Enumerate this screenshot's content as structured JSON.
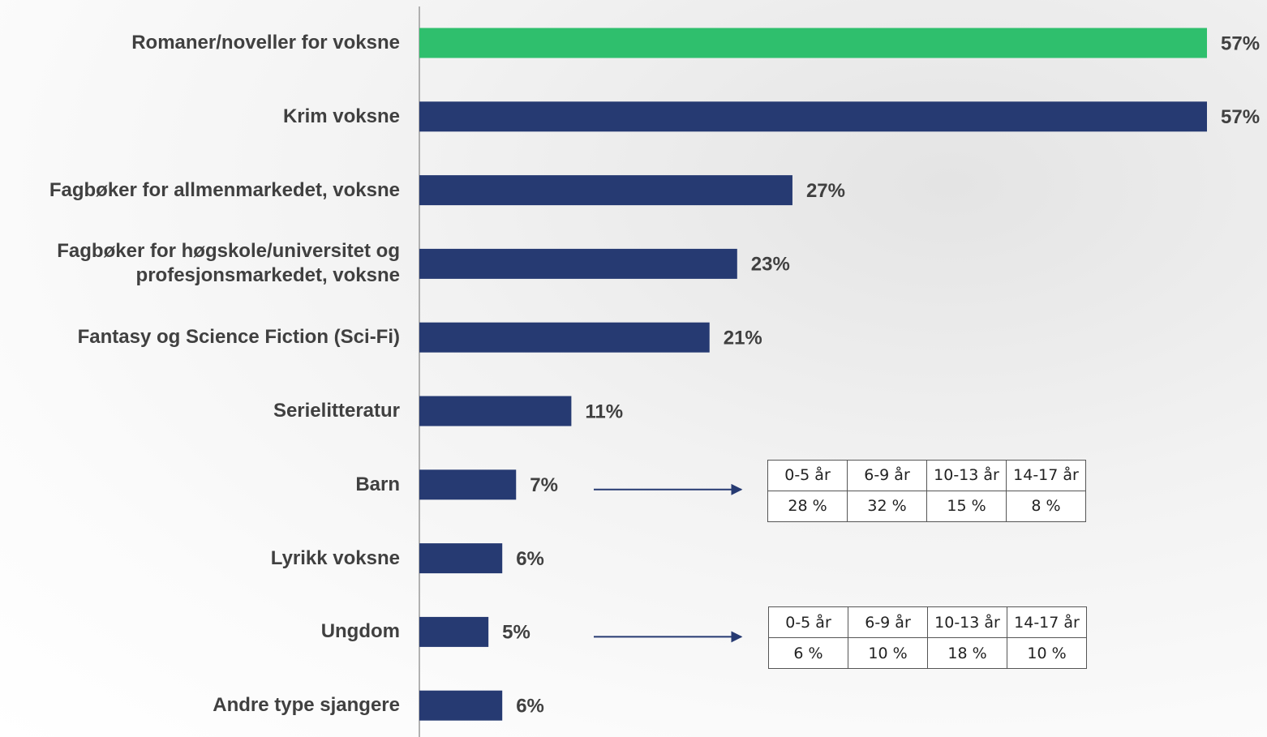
{
  "chart_data": {
    "type": "bar",
    "orientation": "horizontal",
    "categories": [
      "Romaner/noveller for voksne",
      "Krim voksne",
      "Fagbøker for allmenmarkedet, voksne",
      "Fagbøker for høgskole/universitet og profesjonsmarkedet, voksne",
      "Fantasy og Science Fiction (Sci-Fi)",
      "Serielitteratur",
      "Barn",
      "Lyrikk voksne",
      "Ungdom",
      "Andre type sjangere"
    ],
    "values": [
      57,
      57,
      27,
      23,
      21,
      11,
      7,
      6,
      5,
      6
    ],
    "value_labels": [
      "57%",
      "57%",
      "27%",
      "23%",
      "21%",
      "11%",
      "7%",
      "6%",
      "5%",
      "6%"
    ],
    "colors": [
      "#2fbf6d",
      "#263a72",
      "#263a72",
      "#263a72",
      "#263a72",
      "#263a72",
      "#263a72",
      "#263a72",
      "#263a72",
      "#263a72"
    ]
  },
  "tables": [
    {
      "for_category": 6,
      "header": [
        "0-5 år",
        "6-9 år",
        "10-13 år",
        "14-17 år"
      ],
      "row": [
        "28 %",
        "32 %",
        "15 %",
        "8 %"
      ]
    },
    {
      "for_category": 8,
      "header": [
        "0-5 år",
        "6-9 år",
        "10-13 år",
        "14-17 år"
      ],
      "row": [
        "6 %",
        "10 %",
        "18 %",
        "10 %"
      ]
    }
  ]
}
